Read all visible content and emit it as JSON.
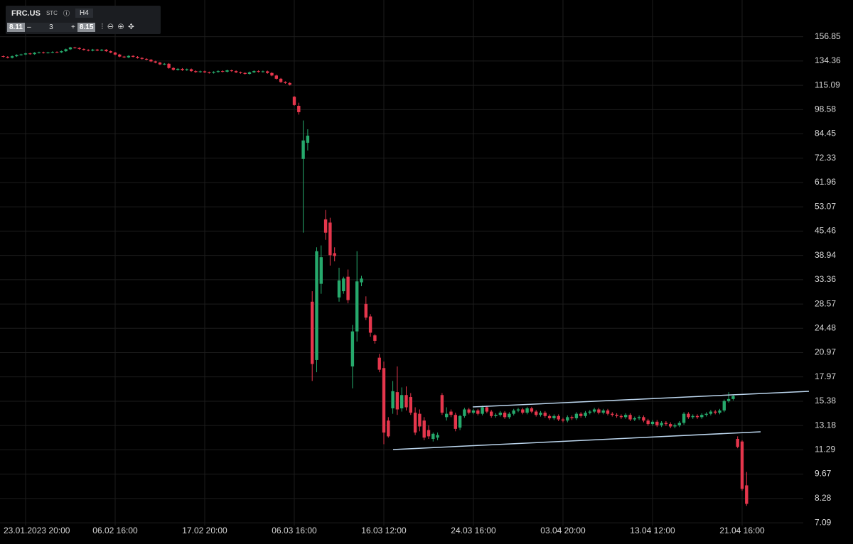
{
  "toolbar": {
    "symbol": "FRC.US",
    "market": "STC",
    "timeframe": "H4",
    "bid": "8.11",
    "minus": "–",
    "quantity": "3",
    "plus": "+",
    "ask": "8.15"
  },
  "chart_data": {
    "type": "candlestick",
    "log": true,
    "grid": true,
    "up_color": "#26a96c",
    "down_color": "#e5364c",
    "ylim": [
      6.66,
      189.4
    ],
    "yticks": [
      156.85,
      134.36,
      115.09,
      98.58,
      84.45,
      72.33,
      61.96,
      53.07,
      45.46,
      38.94,
      33.36,
      28.57,
      24.48,
      20.97,
      17.97,
      15.38,
      13.18,
      11.29,
      9.67,
      8.28,
      7.09
    ],
    "categories": [
      null,
      null,
      null,
      null,
      null,
      "23.01.2023 20:00",
      null,
      null,
      null,
      null,
      null,
      null,
      null,
      null,
      null,
      null,
      null,
      null,
      null,
      null,
      null,
      null,
      null,
      null,
      null,
      "06.02 16:00",
      null,
      null,
      null,
      null,
      null,
      null,
      null,
      null,
      null,
      null,
      null,
      null,
      null,
      null,
      null,
      null,
      null,
      null,
      null,
      "17.02 20:00",
      null,
      null,
      null,
      null,
      null,
      null,
      null,
      null,
      null,
      null,
      null,
      null,
      null,
      null,
      null,
      null,
      null,
      null,
      null,
      "06.03 16:00",
      null,
      null,
      null,
      null,
      null,
      null,
      null,
      null,
      null,
      null,
      null,
      null,
      null,
      null,
      null,
      null,
      null,
      null,
      null,
      "16.03 12:00",
      null,
      null,
      null,
      null,
      null,
      null,
      null,
      null,
      null,
      null,
      null,
      null,
      null,
      null,
      null,
      null,
      null,
      null,
      null,
      "24.03 16:00",
      null,
      null,
      null,
      null,
      null,
      null,
      null,
      null,
      null,
      null,
      null,
      null,
      null,
      null,
      null,
      null,
      null,
      null,
      null,
      "03.04 20:00",
      null,
      null,
      null,
      null,
      null,
      null,
      null,
      null,
      null,
      null,
      null,
      null,
      null,
      null,
      null,
      null,
      null,
      null,
      null,
      "13.04 12:00",
      null,
      null,
      null,
      null,
      null,
      null,
      null,
      null,
      null,
      null,
      null,
      null,
      null,
      null,
      null,
      null,
      null,
      null,
      null,
      "21.04 16:00",
      null
    ],
    "ohlc": [
      [
        138.6,
        139.2,
        137.4,
        138.0
      ],
      [
        138.0,
        138.6,
        136.6,
        137.2
      ],
      [
        137.2,
        139.1,
        136.6,
        138.5
      ],
      [
        138.5,
        140.2,
        137.9,
        139.6
      ],
      [
        139.6,
        140.7,
        139.0,
        140.1
      ],
      [
        140.1,
        141.6,
        139.5,
        141.0
      ],
      [
        141.0,
        141.6,
        139.8,
        140.4
      ],
      [
        140.4,
        142.2,
        139.8,
        141.6
      ],
      [
        141.6,
        142.6,
        141.0,
        142.0
      ],
      [
        142.0,
        142.6,
        140.9,
        141.5
      ],
      [
        141.5,
        142.5,
        140.9,
        141.9
      ],
      [
        141.9,
        142.9,
        141.3,
        142.3
      ],
      [
        142.3,
        142.9,
        141.4,
        142.0
      ],
      [
        142.0,
        143.6,
        141.4,
        143.0
      ],
      [
        143.0,
        145.4,
        142.4,
        144.8
      ],
      [
        144.8,
        147.1,
        144.2,
        146.5
      ],
      [
        146.5,
        147.1,
        145.4,
        146.0
      ],
      [
        146.0,
        146.6,
        144.4,
        145.0
      ],
      [
        145.0,
        145.6,
        143.6,
        144.2
      ],
      [
        144.2,
        144.8,
        142.9,
        143.5
      ],
      [
        143.5,
        145.1,
        142.9,
        144.5
      ],
      [
        144.5,
        145.1,
        143.0,
        143.6
      ],
      [
        143.6,
        145.0,
        143.0,
        144.4
      ],
      [
        144.4,
        145.0,
        142.4,
        143.0
      ],
      [
        143.0,
        143.6,
        141.2,
        141.8
      ],
      [
        141.8,
        142.4,
        139.4,
        140.0
      ],
      [
        140.0,
        140.6,
        137.6,
        138.2
      ],
      [
        138.2,
        138.8,
        136.9,
        137.5
      ],
      [
        137.5,
        139.4,
        136.9,
        138.8
      ],
      [
        138.8,
        139.4,
        137.4,
        138.0
      ],
      [
        138.0,
        138.6,
        136.4,
        137.0
      ],
      [
        137.0,
        137.6,
        135.6,
        136.2
      ],
      [
        136.2,
        136.8,
        134.9,
        135.5
      ],
      [
        135.5,
        136.1,
        133.4,
        134.0
      ],
      [
        134.0,
        134.6,
        132.4,
        133.0
      ],
      [
        133.0,
        133.6,
        130.9,
        131.5
      ],
      [
        131.5,
        132.6,
        130.9,
        132.0
      ],
      [
        132.0,
        132.6,
        127.9,
        128.5
      ],
      [
        128.5,
        129.1,
        126.4,
        127.0
      ],
      [
        127.0,
        128.4,
        126.4,
        127.8
      ],
      [
        127.8,
        128.4,
        126.2,
        126.8
      ],
      [
        126.8,
        128.1,
        126.2,
        127.5
      ],
      [
        127.5,
        128.1,
        125.4,
        126.0
      ],
      [
        126.0,
        126.6,
        124.6,
        125.2
      ],
      [
        125.2,
        126.4,
        124.6,
        125.8
      ],
      [
        125.8,
        126.4,
        124.4,
        125.0
      ],
      [
        125.0,
        125.6,
        124.0,
        124.6
      ],
      [
        124.6,
        125.9,
        124.0,
        125.3
      ],
      [
        125.3,
        126.6,
        124.7,
        126.0
      ],
      [
        126.0,
        126.6,
        124.9,
        125.5
      ],
      [
        125.5,
        127.2,
        124.9,
        126.6
      ],
      [
        126.6,
        127.2,
        125.4,
        126.0
      ],
      [
        126.0,
        126.6,
        124.4,
        125.0
      ],
      [
        125.0,
        125.6,
        123.9,
        124.5
      ],
      [
        124.5,
        125.1,
        123.2,
        123.8
      ],
      [
        123.8,
        125.6,
        123.2,
        125.0
      ],
      [
        125.0,
        126.6,
        124.4,
        126.0
      ],
      [
        126.0,
        126.6,
        124.8,
        125.4
      ],
      [
        125.4,
        126.4,
        124.8,
        125.8
      ],
      [
        125.8,
        126.4,
        123.9,
        124.5
      ],
      [
        124.5,
        125.1,
        121.9,
        122.5
      ],
      [
        122.5,
        123.1,
        119.4,
        120.0
      ],
      [
        120.0,
        120.6,
        116.9,
        117.5
      ],
      [
        117.5,
        118.1,
        116.2,
        116.8
      ],
      [
        116.8,
        117.4,
        114.9,
        115.5
      ],
      [
        107.0,
        107.5,
        101.0,
        101.5
      ],
      [
        101.0,
        103.0,
        95.5,
        97.0
      ],
      [
        72.0,
        92.0,
        45.0,
        81.0
      ],
      [
        79.8,
        87.0,
        76.0,
        83.5
      ],
      [
        29.0,
        31.0,
        17.5,
        19.5
      ],
      [
        20.0,
        41.0,
        18.5,
        40.0
      ],
      [
        32.5,
        41.5,
        30.5,
        38.5
      ],
      [
        49.0,
        52.0,
        43.0,
        45.0
      ],
      [
        48.0,
        49.5,
        36.5,
        39.0
      ],
      [
        39.5,
        41.0,
        37.5,
        38.8
      ],
      [
        29.8,
        36.0,
        29.0,
        33.2
      ],
      [
        31.0,
        34.0,
        30.5,
        33.6
      ],
      [
        34.0,
        35.6,
        28.7,
        29.3
      ],
      [
        19.2,
        25.0,
        16.7,
        24.0
      ],
      [
        24.0,
        40.0,
        22.5,
        33.0
      ],
      [
        32.8,
        34.2,
        32.0,
        33.6
      ],
      [
        28.6,
        30.0,
        25.8,
        26.2
      ],
      [
        26.4,
        26.8,
        23.2,
        23.8
      ],
      [
        23.4,
        23.6,
        22.2,
        22.6
      ],
      [
        20.3,
        20.8,
        18.5,
        18.8
      ],
      [
        19.0,
        19.8,
        11.7,
        12.6
      ],
      [
        13.6,
        13.9,
        12.2,
        12.3
      ],
      [
        14.7,
        17.5,
        14.2,
        16.4
      ],
      [
        16.3,
        19.2,
        14.1,
        14.6
      ],
      [
        14.7,
        16.8,
        14.4,
        16.0
      ],
      [
        16.0,
        16.9,
        14.5,
        14.8
      ],
      [
        15.8,
        16.2,
        14.1,
        14.3
      ],
      [
        14.3,
        14.8,
        12.4,
        12.6
      ],
      [
        14.2,
        14.6,
        12.7,
        13.1
      ],
      [
        13.6,
        13.9,
        12.0,
        12.2
      ],
      [
        12.8,
        13.2,
        12.1,
        12.3
      ],
      [
        12.1,
        12.6,
        11.9,
        12.5
      ],
      [
        12.2,
        12.6,
        12.0,
        12.4
      ],
      [
        16.0,
        16.2,
        14.1,
        14.3
      ],
      [
        13.9,
        14.8,
        13.6,
        14.2
      ],
      [
        14.4,
        14.6,
        13.9,
        14.1
      ],
      [
        14.1,
        14.3,
        12.7,
        12.9
      ],
      [
        13.0,
        14.1,
        12.8,
        14.0
      ],
      [
        14.0,
        14.75,
        13.85,
        14.6
      ],
      [
        14.6,
        14.75,
        14.15,
        14.3
      ],
      [
        14.3,
        14.65,
        14.15,
        14.5
      ],
      [
        14.5,
        14.65,
        14.05,
        14.2
      ],
      [
        14.2,
        14.95,
        14.05,
        14.8
      ],
      [
        14.8,
        14.95,
        14.25,
        14.4
      ],
      [
        14.4,
        14.55,
        13.85,
        14.0
      ],
      [
        14.0,
        14.25,
        13.85,
        14.1
      ],
      [
        14.1,
        14.45,
        13.95,
        14.3
      ],
      [
        14.3,
        14.45,
        13.75,
        13.9
      ],
      [
        13.9,
        14.35,
        13.75,
        14.2
      ],
      [
        14.2,
        14.65,
        14.05,
        14.5
      ],
      [
        14.5,
        14.75,
        14.35,
        14.6
      ],
      [
        14.6,
        14.75,
        14.15,
        14.3
      ],
      [
        14.3,
        14.85,
        14.15,
        14.7
      ],
      [
        14.7,
        14.85,
        14.25,
        14.4
      ],
      [
        14.4,
        14.55,
        13.95,
        14.1
      ],
      [
        14.1,
        14.45,
        13.95,
        14.3
      ],
      [
        14.3,
        14.45,
        13.85,
        14.0
      ],
      [
        14.0,
        14.15,
        13.65,
        13.8
      ],
      [
        13.8,
        14.15,
        13.65,
        14.0
      ],
      [
        14.0,
        14.15,
        13.55,
        13.7
      ],
      [
        13.7,
        13.85,
        13.45,
        13.6
      ],
      [
        13.6,
        14.05,
        13.45,
        13.9
      ],
      [
        13.9,
        14.05,
        13.65,
        13.8
      ],
      [
        13.8,
        14.35,
        13.65,
        14.2
      ],
      [
        14.2,
        14.35,
        13.85,
        14.0
      ],
      [
        14.0,
        14.45,
        13.85,
        14.3
      ],
      [
        14.3,
        14.55,
        14.15,
        14.4
      ],
      [
        14.4,
        14.75,
        14.25,
        14.6
      ],
      [
        14.6,
        14.75,
        14.15,
        14.3
      ],
      [
        14.3,
        14.65,
        14.15,
        14.5
      ],
      [
        14.5,
        14.65,
        14.05,
        14.2
      ],
      [
        14.2,
        14.35,
        13.95,
        14.1
      ],
      [
        14.1,
        14.25,
        13.85,
        14.0
      ],
      [
        14.0,
        14.15,
        13.75,
        13.9
      ],
      [
        13.9,
        14.25,
        13.75,
        14.1
      ],
      [
        14.1,
        14.25,
        13.55,
        13.7
      ],
      [
        13.7,
        13.95,
        13.55,
        13.8
      ],
      [
        13.8,
        14.05,
        13.65,
        13.9
      ],
      [
        13.9,
        14.05,
        13.45,
        13.6
      ],
      [
        13.6,
        13.75,
        13.15,
        13.3
      ],
      [
        13.3,
        13.65,
        13.15,
        13.5
      ],
      [
        13.5,
        13.65,
        13.05,
        13.2
      ],
      [
        13.2,
        13.55,
        13.05,
        13.4
      ],
      [
        13.4,
        13.55,
        13.15,
        13.3
      ],
      [
        13.3,
        13.45,
        12.95,
        13.1
      ],
      [
        13.1,
        13.35,
        12.95,
        13.2
      ],
      [
        13.2,
        13.55,
        13.05,
        13.4
      ],
      [
        13.4,
        14.35,
        13.25,
        14.2
      ],
      [
        14.2,
        14.35,
        13.75,
        13.9
      ],
      [
        13.9,
        14.15,
        13.75,
        14.0
      ],
      [
        14.0,
        14.15,
        13.75,
        13.9
      ],
      [
        13.9,
        14.25,
        13.75,
        14.1
      ],
      [
        14.1,
        14.35,
        13.95,
        14.2
      ],
      [
        14.2,
        14.55,
        14.05,
        14.4
      ],
      [
        14.4,
        14.55,
        14.15,
        14.3
      ],
      [
        14.3,
        14.65,
        14.15,
        14.5
      ],
      [
        14.5,
        15.55,
        14.35,
        15.4
      ],
      [
        15.4,
        16.3,
        15.25,
        15.6
      ],
      [
        15.6,
        16.05,
        15.45,
        15.9
      ],
      [
        12.1,
        12.3,
        11.4,
        11.5
      ],
      [
        11.9,
        12.0,
        8.7,
        8.8
      ],
      [
        9.0,
        9.8,
        7.9,
        8.0
      ]
    ]
  }
}
